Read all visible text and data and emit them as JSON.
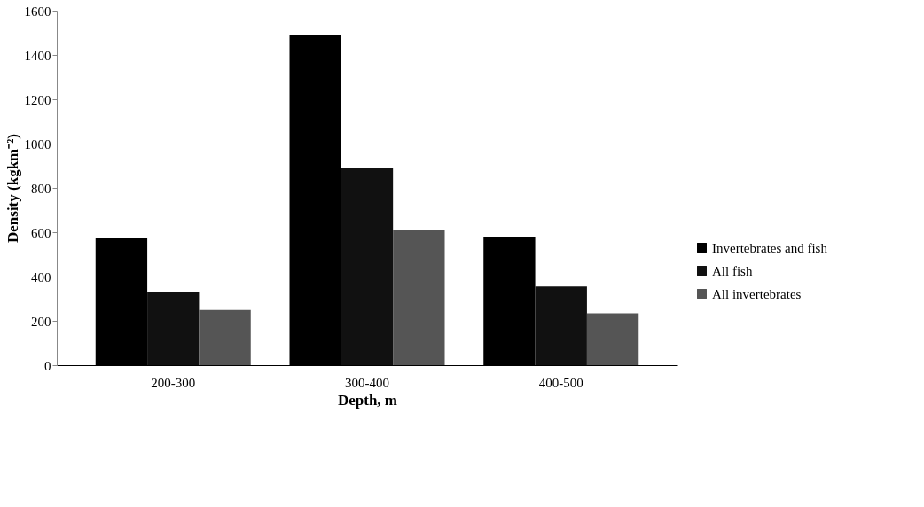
{
  "chart_data": {
    "type": "bar",
    "xlabel": "Depth, m",
    "ylabel": "Density (kgkm⁻²)",
    "categories": [
      "200-300",
      "300-400",
      "400-500"
    ],
    "series": [
      {
        "name": "Invertebrates and fish",
        "color": "#000000",
        "values": [
          575,
          1490,
          580
        ]
      },
      {
        "name": "All fish",
        "color": "#111111",
        "values": [
          328,
          890,
          355
        ]
      },
      {
        "name": "All invertebrates",
        "color": "#555555",
        "values": [
          249,
          608,
          234
        ]
      }
    ],
    "ylim": [
      0,
      1600
    ],
    "yticks": [
      0,
      200,
      400,
      600,
      800,
      1000,
      1200,
      1400,
      1600
    ],
    "grid": false,
    "legend": "right"
  }
}
